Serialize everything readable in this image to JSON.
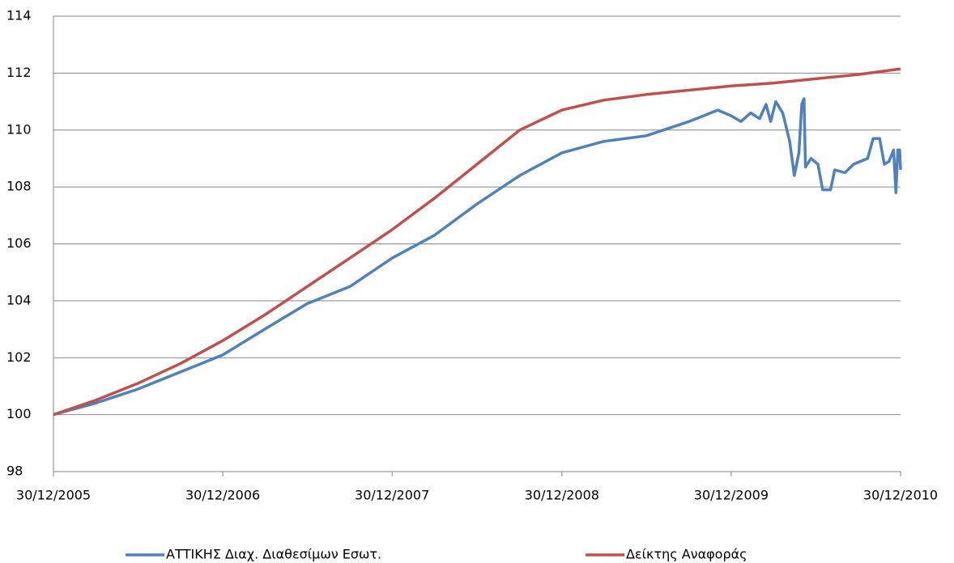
{
  "chart_data": {
    "type": "line",
    "xticks": [
      {
        "value": "2005-12-30",
        "label": "30/12/2005"
      },
      {
        "value": "2006-12-30",
        "label": "30/12/2006"
      },
      {
        "value": "2007-12-30",
        "label": "30/12/2007"
      },
      {
        "value": "2008-12-30",
        "label": "30/12/2008"
      },
      {
        "value": "2009-12-30",
        "label": "30/12/2009"
      },
      {
        "value": "2010-12-30",
        "label": "30/12/2010"
      }
    ],
    "xlim": [
      "2005-12-30",
      "2010-12-30"
    ],
    "ylim": [
      98,
      114
    ],
    "yticks": [
      98,
      100,
      102,
      104,
      106,
      108,
      110,
      112,
      114
    ],
    "grid": true,
    "legend": "bottom",
    "series": [
      {
        "name": "ΑΤΤΙΚΗΣ Διαχ. Διαθεσίμων Εσωτ.",
        "color": "#4f81bd",
        "x": [
          "2005-12-30",
          "2006-03-30",
          "2006-06-30",
          "2006-09-30",
          "2006-12-30",
          "2007-03-30",
          "2007-06-30",
          "2007-09-30",
          "2007-12-30",
          "2008-03-30",
          "2008-06-30",
          "2008-09-30",
          "2008-12-30",
          "2009-03-30",
          "2009-06-30",
          "2009-09-30",
          "2009-12-01",
          "2009-12-30",
          "2010-01-20",
          "2010-02-10",
          "2010-03-01",
          "2010-03-15",
          "2010-03-25",
          "2010-04-05",
          "2010-04-20",
          "2010-05-05",
          "2010-05-15",
          "2010-05-25",
          "2010-05-31",
          "2010-06-05",
          "2010-06-08",
          "2010-06-20",
          "2010-07-05",
          "2010-07-15",
          "2010-08-01",
          "2010-08-10",
          "2010-09-01",
          "2010-09-20",
          "2010-10-20",
          "2010-11-01",
          "2010-11-15",
          "2010-11-25",
          "2010-12-05",
          "2010-12-15",
          "2010-12-20",
          "2010-12-24",
          "2010-12-28",
          "2010-12-30"
        ],
        "values": [
          100,
          100.4,
          100.9,
          101.5,
          102.1,
          103.0,
          103.9,
          104.5,
          105.5,
          106.3,
          107.4,
          108.4,
          109.2,
          109.6,
          109.8,
          110.3,
          110.7,
          110.5,
          110.3,
          110.6,
          110.4,
          110.9,
          110.3,
          111.0,
          110.6,
          109.6,
          108.4,
          109.2,
          110.9,
          111.1,
          108.7,
          109.0,
          108.8,
          107.9,
          107.9,
          108.6,
          108.5,
          108.8,
          109.0,
          109.7,
          109.7,
          108.8,
          108.9,
          109.3,
          107.8,
          109.3,
          109.3,
          108.6
        ]
      },
      {
        "name": "Δείκτης Αναφοράς",
        "color": "#c0504d",
        "x": [
          "2005-12-30",
          "2006-03-30",
          "2006-06-30",
          "2006-09-30",
          "2006-12-30",
          "2007-03-30",
          "2007-06-30",
          "2007-09-30",
          "2007-12-30",
          "2008-03-30",
          "2008-06-30",
          "2008-09-30",
          "2008-12-30",
          "2009-03-30",
          "2009-06-30",
          "2009-09-30",
          "2009-12-30",
          "2010-03-30",
          "2010-06-30",
          "2010-09-30",
          "2010-12-30"
        ],
        "values": [
          100,
          100.5,
          101.1,
          101.8,
          102.6,
          103.5,
          104.5,
          105.5,
          106.5,
          107.6,
          108.8,
          110.0,
          110.7,
          111.05,
          111.25,
          111.4,
          111.55,
          111.65,
          111.8,
          111.95,
          112.15
        ]
      }
    ]
  }
}
